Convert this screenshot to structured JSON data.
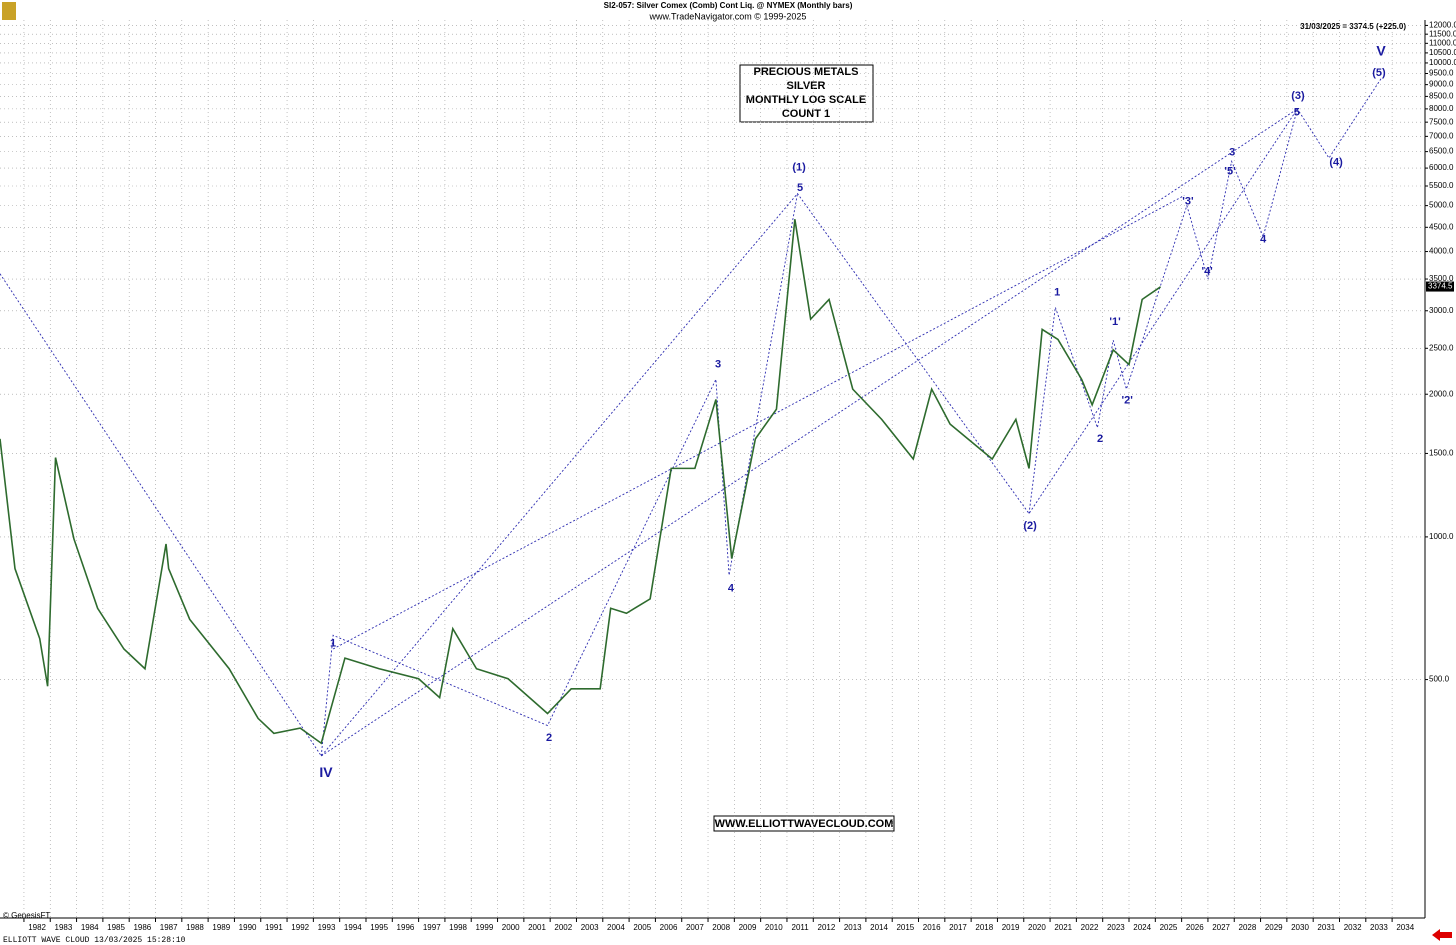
{
  "header": {
    "title": "SI2-057:  Silver Comex (Comb) Cont Liq. @ NYMEX  (Monthly bars)",
    "source": "www.TradeNavigator.com © 1999-2025",
    "last_quote": "31/03/2025 = 3374.5 (+225.0)"
  },
  "info_box": [
    "PRECIOUS METALS",
    "SILVER",
    "MONTHLY LOG SCALE",
    "COUNT 1"
  ],
  "website": "WWW.ELLIOTTWAVECLOUD.COM",
  "copyright": "© GenesisFT",
  "footer": "ELLIOTT WAVE CLOUD   13/03/2025 15:28:10",
  "chart_data": {
    "type": "line",
    "log_scale": true,
    "grid": true,
    "xlim": [
      1981.09,
      2035.25
    ],
    "ylim": [
      157,
      12320
    ],
    "xticks": [
      1982,
      1983,
      1984,
      1985,
      1986,
      1987,
      1988,
      1989,
      1990,
      1991,
      1992,
      1993,
      1994,
      1995,
      1996,
      1997,
      1998,
      1999,
      2000,
      2001,
      2002,
      2003,
      2004,
      2005,
      2006,
      2007,
      2008,
      2009,
      2010,
      2011,
      2012,
      2013,
      2014,
      2015,
      2016,
      2017,
      2018,
      2019,
      2020,
      2021,
      2022,
      2023,
      2024,
      2025,
      2026,
      2027,
      2028,
      2029,
      2030,
      2031,
      2032,
      2033,
      2034
    ],
    "yticks": [
      {
        "value": 500,
        "label": "500.0"
      },
      {
        "value": 1000,
        "label": "1000.0"
      },
      {
        "value": 1500,
        "label": "1500.0"
      },
      {
        "value": 2000,
        "label": "2000.0"
      },
      {
        "value": 2500,
        "label": "2500.0"
      },
      {
        "value": 3000,
        "label": "3000.0"
      },
      {
        "value": 3500,
        "label": "3500.0"
      },
      {
        "value": 4000,
        "label": "4000.0"
      },
      {
        "value": 4500,
        "label": "4500.0"
      },
      {
        "value": 5000,
        "label": "5000.0"
      },
      {
        "value": 5500,
        "label": "5500.0"
      },
      {
        "value": 6000,
        "label": "6000.0"
      },
      {
        "value": 6500,
        "label": "6500.0"
      },
      {
        "value": 7000,
        "label": "7000.0"
      },
      {
        "value": 7500,
        "label": "7500.0"
      },
      {
        "value": 8000,
        "label": "8000.0"
      },
      {
        "value": 8500,
        "label": "8500.0"
      },
      {
        "value": 9000,
        "label": "9000.0"
      },
      {
        "value": 9500,
        "label": "9500.0"
      },
      {
        "value": 10000,
        "label": "10000.0"
      },
      {
        "value": 10500,
        "label": "10500.0"
      },
      {
        "value": 11000,
        "label": "11000.0"
      },
      {
        "value": 11500,
        "label": "11500.0"
      },
      {
        "value": 12000,
        "label": "12000.0"
      }
    ],
    "last_price": {
      "value": 3374.5,
      "label": "3374.5"
    },
    "series": [
      {
        "color": "#2e6b2e",
        "x": [
          1981.09,
          1981.66,
          1982.6,
          1982.9,
          1983.2,
          1983.9,
          1984.8,
          1985.8,
          1986.6,
          1987.4,
          1987.5,
          1988.3,
          1989.8,
          1990.9,
          1991.5,
          1992.5,
          1993.3,
          1994.2,
          1995.5,
          1997.0,
          1997.8,
          1998.3,
          1999.2,
          2000.4,
          2001.9,
          2002.8,
          2003.9,
          2004.3,
          2004.9,
          2005.8,
          2006.6,
          2007.5,
          2008.3,
          2008.9,
          2009.8,
          2010.6,
          2011.3,
          2011.9,
          2012.6,
          2013.5,
          2014.6,
          2015.8,
          2016.5,
          2017.2,
          2018.8,
          2019.7,
          2020.2,
          2020.7,
          2021.3,
          2022.2,
          2022.6,
          2023.4,
          2024.0,
          2024.5,
          2025.2
        ],
        "values": [
          1610,
          857,
          610,
          484,
          1470,
          990,
          707,
          580,
          527,
          966,
          857,
          670,
          527,
          414,
          385,
          395,
          367,
          555,
          527,
          502,
          458,
          640,
          527,
          502,
          424,
          478,
          478,
          707,
          690,
          740,
          1395,
          1395,
          1950,
          900,
          1610,
          1860,
          4680,
          2880,
          3170,
          2050,
          1770,
          1460,
          2050,
          1730,
          1460,
          1770,
          1395,
          2740,
          2610,
          2150,
          1900,
          2480,
          2310,
          3170,
          3370
        ]
      }
    ],
    "wave_paths": [
      [
        [
          1981.09,
          3590
        ],
        [
          1993.3,
          345
        ],
        [
          2011.4,
          5300
        ],
        [
          2020.2,
          1120
        ],
        [
          2030.4,
          8000
        ],
        [
          2031.6,
          6300
        ],
        [
          2033.6,
          9300
        ]
      ],
      [
        [
          1993.3,
          345
        ],
        [
          1993.75,
          620
        ],
        [
          2001.9,
          400
        ],
        [
          2008.3,
          2150
        ],
        [
          2008.8,
          830
        ],
        [
          2011.4,
          5300
        ]
      ],
      [
        [
          1993.3,
          345
        ],
        [
          2030.4,
          8000
        ]
      ],
      [
        [
          1993.75,
          580
        ],
        [
          2026.1,
          5250
        ]
      ],
      [
        [
          2020.2,
          1120
        ],
        [
          2021.2,
          3050
        ],
        [
          2022.8,
          1700
        ],
        [
          2023.4,
          2600
        ],
        [
          2023.9,
          2050
        ],
        [
          2026.2,
          5000
        ],
        [
          2027.0,
          3500
        ],
        [
          2027.9,
          6200
        ],
        [
          2029.1,
          4300
        ],
        [
          2030.4,
          8000
        ]
      ]
    ],
    "annotations": [
      {
        "text": "IV",
        "x": 1993.48,
        "y": 317,
        "big": true
      },
      {
        "text": "1",
        "x": 1993.75,
        "y": 596
      },
      {
        "text": "2",
        "x": 2001.96,
        "y": 376
      },
      {
        "text": "3",
        "x": 2008.38,
        "y": 2310
      },
      {
        "text": "4",
        "x": 2008.87,
        "y": 778
      },
      {
        "text": "(1)",
        "x": 2011.46,
        "y": 6010
      },
      {
        "text": "5",
        "x": 2011.5,
        "y": 5450
      },
      {
        "text": "(2)",
        "x": 2020.24,
        "y": 1055
      },
      {
        "text": "1",
        "x": 2021.27,
        "y": 3280
      },
      {
        "text": "2",
        "x": 2022.9,
        "y": 1610
      },
      {
        "text": "'1'",
        "x": 2023.47,
        "y": 2840
      },
      {
        "text": "'2'",
        "x": 2023.93,
        "y": 1940
      },
      {
        "text": "'3'",
        "x": 2026.24,
        "y": 5100
      },
      {
        "text": "'4'",
        "x": 2026.97,
        "y": 3630
      },
      {
        "text": "'5'",
        "x": 2027.84,
        "y": 5900
      },
      {
        "text": "3",
        "x": 2027.92,
        "y": 6470
      },
      {
        "text": "4",
        "x": 2029.1,
        "y": 4240
      },
      {
        "text": "(3)",
        "x": 2030.42,
        "y": 8520
      },
      {
        "text": "5",
        "x": 2030.38,
        "y": 7850
      },
      {
        "text": "(4)",
        "x": 2031.87,
        "y": 6160
      },
      {
        "text": "V",
        "x": 2033.58,
        "y": 10550,
        "big": true
      },
      {
        "text": "(5)",
        "x": 2033.5,
        "y": 9530
      }
    ]
  }
}
